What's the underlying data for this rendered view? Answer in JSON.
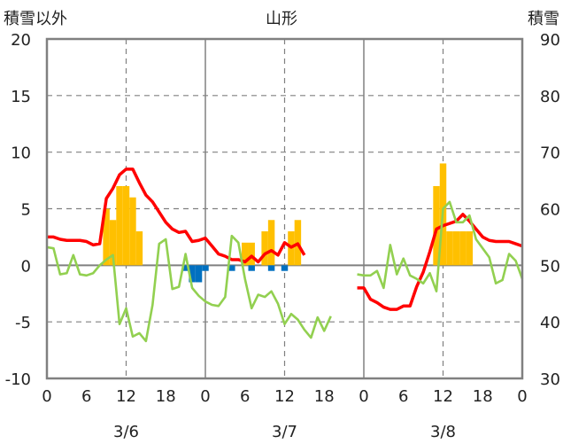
{
  "chart_data": {
    "type": "bar+line",
    "title": "山形",
    "y_left_title": "積雪以外",
    "y_right_title": "積雪",
    "y_left": {
      "min": -10,
      "max": 20,
      "ticks": [
        -10,
        -5,
        0,
        5,
        10,
        15,
        20
      ]
    },
    "y_right": {
      "min": 30,
      "max": 90,
      "ticks": [
        30,
        40,
        50,
        60,
        70,
        80,
        90
      ]
    },
    "x_tick_labels": [
      "0",
      "6",
      "12",
      "18",
      "0",
      "6",
      "12",
      "18",
      "0",
      "6",
      "12",
      "18",
      "0"
    ],
    "x_tick_hours": [
      0,
      6,
      12,
      18,
      24,
      30,
      36,
      42,
      48,
      54,
      60,
      66,
      72
    ],
    "date_labels": [
      {
        "text": "3/6",
        "hour": 12
      },
      {
        "text": "3/7",
        "hour": 36
      },
      {
        "text": "3/8",
        "hour": 60
      }
    ],
    "x_range": [
      0,
      72
    ],
    "series": [
      {
        "kind": "bar",
        "color": "#FFC000",
        "points": [
          [
            9,
            5
          ],
          [
            10,
            4
          ],
          [
            11,
            7
          ],
          [
            12,
            7
          ],
          [
            13,
            6
          ],
          [
            14,
            3
          ],
          [
            30,
            2
          ],
          [
            31,
            2
          ],
          [
            33,
            3
          ],
          [
            34,
            4
          ],
          [
            37,
            3
          ],
          [
            38,
            4
          ],
          [
            59,
            7
          ],
          [
            60,
            9
          ],
          [
            61,
            3
          ],
          [
            62,
            3
          ],
          [
            63,
            3
          ],
          [
            64,
            3
          ]
        ]
      },
      {
        "kind": "bar",
        "color": "#0070C0",
        "points": [
          [
            21,
            -0.5
          ],
          [
            22,
            -1.5
          ],
          [
            23,
            -1.5
          ],
          [
            24,
            -0.5
          ],
          [
            28,
            -0.5
          ],
          [
            31,
            -0.5
          ],
          [
            34,
            -0.5
          ],
          [
            36,
            -0.5
          ]
        ]
      },
      {
        "kind": "line",
        "color": "#FF0000",
        "points": [
          [
            0,
            2.5
          ],
          [
            1,
            2.5
          ],
          [
            2,
            2.3
          ],
          [
            3,
            2.2
          ],
          [
            4,
            2.2
          ],
          [
            5,
            2.2
          ],
          [
            6,
            2.1
          ],
          [
            7,
            1.8
          ],
          [
            8,
            1.9
          ],
          [
            9,
            5.9
          ],
          [
            10,
            6.8
          ],
          [
            11,
            8.0
          ],
          [
            12,
            8.5
          ],
          [
            13,
            8.5
          ],
          [
            14,
            7.3
          ],
          [
            15,
            6.2
          ],
          [
            16,
            5.6
          ],
          [
            17,
            4.7
          ],
          [
            18,
            3.8
          ],
          [
            19,
            3.2
          ],
          [
            20,
            2.9
          ],
          [
            21,
            3.0
          ],
          [
            22,
            2.1
          ],
          [
            23,
            2.2
          ],
          [
            24,
            2.4
          ],
          [
            25,
            1.7
          ],
          [
            26,
            1.0
          ],
          [
            27,
            0.8
          ],
          [
            28,
            0.5
          ],
          [
            29,
            0.5
          ],
          [
            30,
            0.3
          ],
          [
            31,
            0.8
          ],
          [
            32,
            0.3
          ],
          [
            33,
            1.0
          ],
          [
            34,
            1.3
          ],
          [
            35,
            0.9
          ],
          [
            36,
            2.0
          ],
          [
            37,
            1.6
          ],
          [
            38,
            1.9
          ],
          [
            39,
            0.9
          ],
          null,
          [
            47,
            -2.0
          ],
          [
            48,
            -2.0
          ],
          [
            49,
            -3.0
          ],
          [
            50,
            -3.3
          ],
          [
            51,
            -3.7
          ],
          [
            52,
            -3.9
          ],
          [
            53,
            -3.9
          ],
          [
            54,
            -3.6
          ],
          [
            55,
            -3.6
          ],
          [
            56,
            -1.9
          ],
          [
            57,
            -0.6
          ],
          [
            58,
            1.2
          ],
          [
            59,
            3.2
          ],
          [
            60,
            3.5
          ],
          [
            61,
            3.7
          ],
          [
            62,
            3.9
          ],
          [
            63,
            4.5
          ],
          [
            64,
            3.9
          ],
          [
            65,
            3.2
          ],
          [
            66,
            2.5
          ],
          [
            67,
            2.2
          ],
          [
            68,
            2.1
          ],
          [
            69,
            2.1
          ],
          [
            70,
            2.1
          ],
          [
            71,
            1.9
          ],
          [
            72,
            1.7
          ]
        ]
      },
      {
        "kind": "line",
        "color": "#92D050",
        "points": [
          [
            0,
            1.6
          ],
          [
            1,
            1.5
          ],
          [
            2,
            -0.8
          ],
          [
            3,
            -0.7
          ],
          [
            4,
            0.9
          ],
          [
            5,
            -0.8
          ],
          [
            6,
            -0.9
          ],
          [
            7,
            -0.7
          ],
          [
            8,
            0.0
          ],
          [
            9,
            0.5
          ],
          [
            10,
            0.9
          ],
          [
            11,
            -5.2
          ],
          [
            12,
            -3.8
          ],
          [
            13,
            -6.3
          ],
          [
            14,
            -6.0
          ],
          [
            15,
            -6.7
          ],
          [
            16,
            -3.5
          ],
          [
            17,
            1.9
          ],
          [
            18,
            2.3
          ],
          [
            19,
            -2.1
          ],
          [
            20,
            -1.9
          ],
          [
            21,
            1.0
          ],
          [
            22,
            -2.0
          ],
          [
            23,
            -2.7
          ],
          [
            24,
            -3.2
          ],
          [
            25,
            -3.5
          ],
          [
            26,
            -3.6
          ],
          [
            27,
            -2.8
          ],
          [
            28,
            2.6
          ],
          [
            29,
            2.0
          ],
          [
            30,
            -1.2
          ],
          [
            31,
            -3.8
          ],
          [
            32,
            -2.6
          ],
          [
            33,
            -2.8
          ],
          [
            34,
            -2.3
          ],
          [
            35,
            -3.4
          ],
          [
            36,
            -5.2
          ],
          [
            37,
            -4.3
          ],
          [
            38,
            -4.8
          ],
          [
            39,
            -5.7
          ],
          [
            40,
            -6.4
          ],
          [
            41,
            -4.6
          ],
          [
            42,
            -5.8
          ],
          [
            43,
            -4.5
          ],
          null,
          [
            47,
            -0.8
          ],
          [
            48,
            -0.9
          ],
          [
            49,
            -0.9
          ],
          [
            50,
            -0.5
          ],
          [
            51,
            -2.0
          ],
          [
            52,
            1.8
          ],
          [
            53,
            -0.8
          ],
          [
            54,
            0.6
          ],
          [
            55,
            -0.9
          ],
          [
            56,
            -1.2
          ],
          [
            57,
            -1.6
          ],
          [
            58,
            -0.7
          ],
          [
            59,
            -2.3
          ],
          [
            60,
            5.0
          ],
          [
            61,
            5.6
          ],
          [
            62,
            3.8
          ],
          [
            63,
            3.8
          ],
          [
            64,
            4.4
          ],
          [
            65,
            2.3
          ],
          [
            66,
            1.5
          ],
          [
            67,
            0.7
          ],
          [
            68,
            -1.6
          ],
          [
            69,
            -1.3
          ],
          [
            70,
            1.0
          ],
          [
            71,
            0.4
          ],
          [
            72,
            -1.2
          ]
        ]
      }
    ],
    "grid": {
      "dashed_vertical_at_hours": [
        12,
        36,
        60
      ],
      "solid_vertical_at_hours": [
        24,
        48
      ],
      "horizontal": true
    }
  }
}
